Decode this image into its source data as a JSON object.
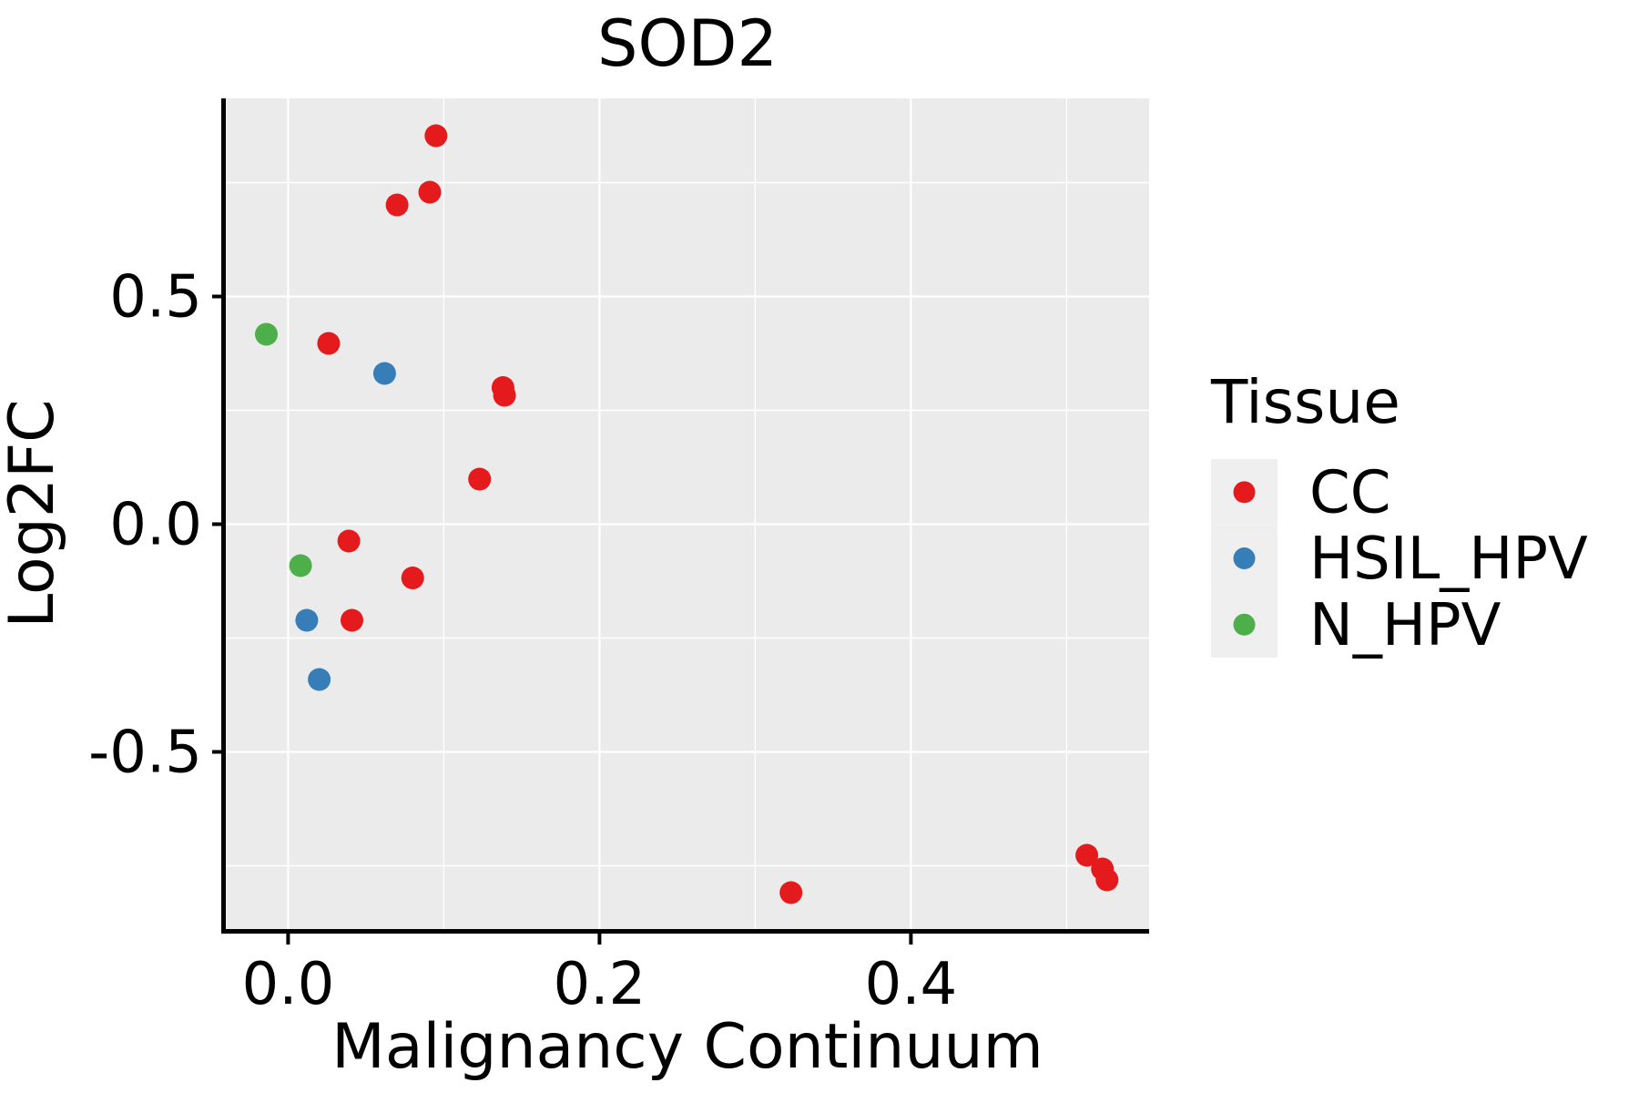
{
  "title": "SOD2",
  "axes": {
    "x_label": "Malignancy Continuum",
    "y_label": "Log2FC"
  },
  "legend": {
    "title": "Tissue",
    "entries": [
      {
        "label": "CC",
        "color": "#E41A1C"
      },
      {
        "label": "HSIL_HPV",
        "color": "#377EB8"
      },
      {
        "label": "N_HPV",
        "color": "#4DAF4A"
      }
    ]
  },
  "colors": {
    "panel_background": "#EBEBEB",
    "gridline": "#FFFFFF",
    "axis_line": "#000000",
    "text": "#000000",
    "legend_key_background": "#EFEFEF"
  },
  "chart_data": {
    "type": "scatter",
    "title": "SOD2",
    "xlabel": "Malignancy Continuum",
    "ylabel": "Log2FC",
    "xlim": [
      -0.04,
      0.553
    ],
    "ylim": [
      -0.889,
      0.935
    ],
    "grid": true,
    "legend_title": "Tissue",
    "legend_position": "right",
    "x_ticks": {
      "values": [
        0.0,
        0.2,
        0.4
      ],
      "labels": [
        "0.0",
        "0.2",
        "0.4"
      ]
    },
    "y_ticks": {
      "values": [
        0.5,
        0.0,
        -0.5
      ],
      "labels": [
        "0.5",
        "0.0",
        "-0.5"
      ]
    },
    "x_minor_ticks": [
      0.1,
      0.3,
      0.5
    ],
    "y_minor_ticks": [
      0.75,
      0.25,
      -0.25,
      -0.75
    ],
    "series": [
      {
        "name": "CC",
        "color": "#E41A1C",
        "points": [
          [
            0.095,
            0.853
          ],
          [
            0.091,
            0.729
          ],
          [
            0.07,
            0.701
          ],
          [
            0.026,
            0.397
          ],
          [
            0.138,
            0.3
          ],
          [
            0.139,
            0.283
          ],
          [
            0.123,
            0.099
          ],
          [
            0.039,
            -0.037
          ],
          [
            0.08,
            -0.118
          ],
          [
            0.041,
            -0.211
          ],
          [
            0.323,
            -0.809
          ],
          [
            0.513,
            -0.727
          ],
          [
            0.523,
            -0.757
          ],
          [
            0.526,
            -0.781
          ]
        ]
      },
      {
        "name": "HSIL_HPV",
        "color": "#377EB8",
        "points": [
          [
            0.062,
            0.331
          ],
          [
            0.012,
            -0.211
          ],
          [
            0.02,
            -0.341
          ]
        ]
      },
      {
        "name": "N_HPV",
        "color": "#4DAF4A",
        "points": [
          [
            -0.014,
            0.417
          ],
          [
            0.008,
            -0.091
          ]
        ]
      }
    ]
  }
}
